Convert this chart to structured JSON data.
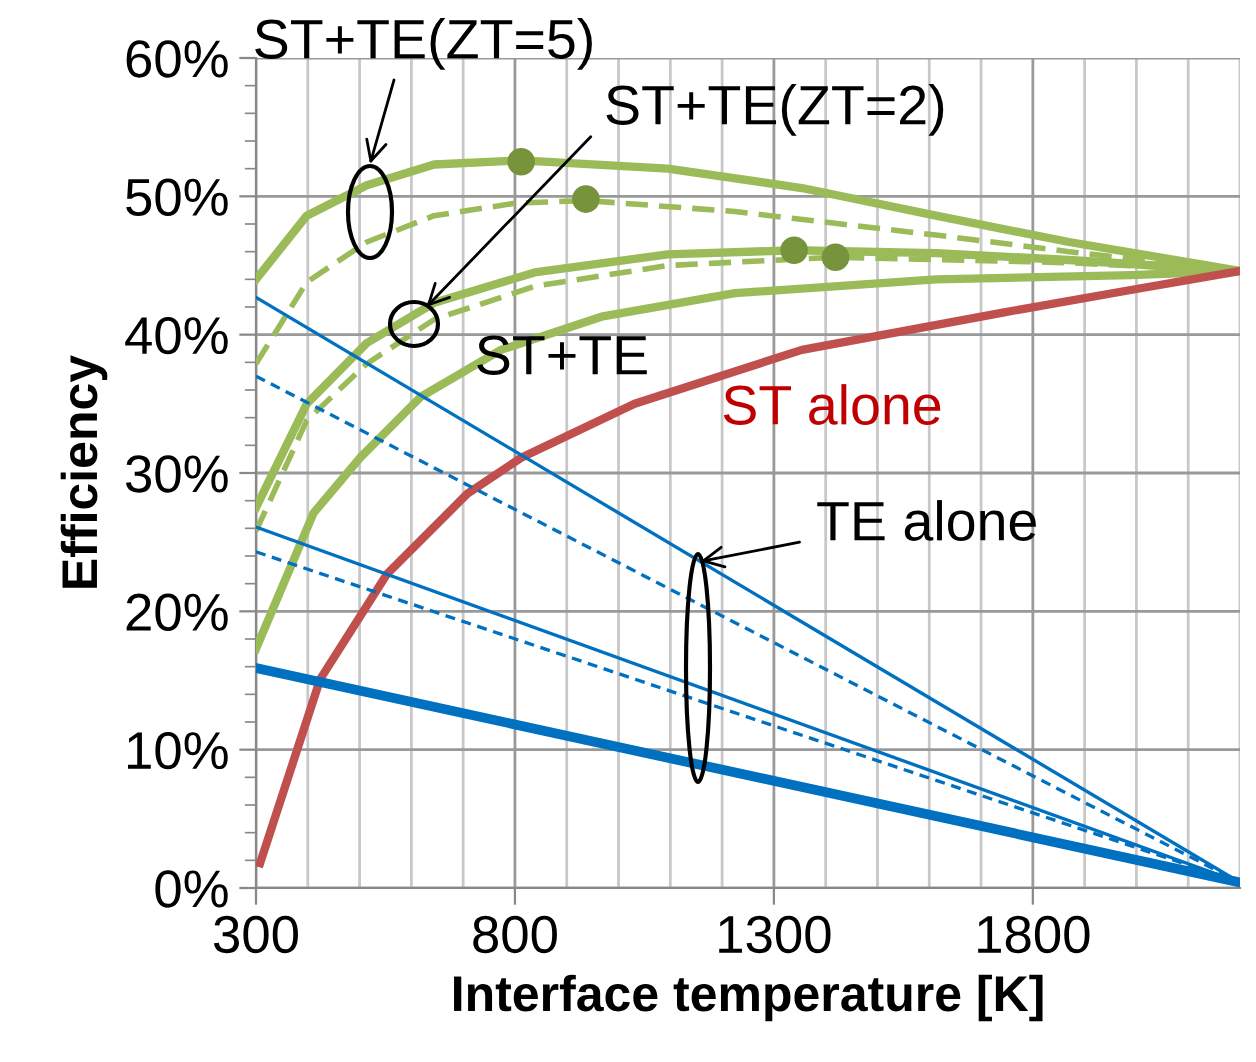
{
  "chart_data": {
    "type": "line",
    "xlabel": "Interface temperature [K]",
    "ylabel": "Efficiency",
    "xlim": [
      300,
      2200
    ],
    "ylim": [
      0,
      60
    ],
    "xticks": [
      300,
      {
        "value": 400,
        "label": null
      },
      {
        "value": 500,
        "label": null
      },
      {
        "value": 600,
        "label": null
      },
      {
        "value": 700,
        "label": null
      },
      800,
      {
        "value": 900,
        "label": null
      },
      {
        "value": 1000,
        "label": null
      },
      {
        "value": 1100,
        "label": null
      },
      {
        "value": 1200,
        "label": null
      },
      1300,
      {
        "value": 1400,
        "label": null
      },
      {
        "value": 1500,
        "label": null
      },
      {
        "value": 1600,
        "label": null
      },
      {
        "value": 1700,
        "label": null
      },
      1800,
      {
        "value": 1900,
        "label": null
      },
      {
        "value": 2000,
        "label": null
      },
      {
        "value": 2100,
        "label": null
      },
      {
        "value": 2200,
        "label": null
      }
    ],
    "yticks": [
      {
        "value": 0,
        "label": "0%"
      },
      {
        "value": 2,
        "label": null
      },
      {
        "value": 4,
        "label": null
      },
      {
        "value": 6,
        "label": null
      },
      {
        "value": 8,
        "label": null
      },
      {
        "value": 10,
        "label": "10%"
      },
      {
        "value": 12,
        "label": null
      },
      {
        "value": 14,
        "label": null
      },
      {
        "value": 16,
        "label": null
      },
      {
        "value": 18,
        "label": null
      },
      {
        "value": 20,
        "label": "20%"
      },
      {
        "value": 22,
        "label": null
      },
      {
        "value": 24,
        "label": null
      },
      {
        "value": 26,
        "label": null
      },
      {
        "value": 28,
        "label": null
      },
      {
        "value": 30,
        "label": "30%"
      },
      {
        "value": 32,
        "label": null
      },
      {
        "value": 34,
        "label": null
      },
      {
        "value": 36,
        "label": null
      },
      {
        "value": 38,
        "label": null
      },
      {
        "value": 40,
        "label": "40%"
      },
      {
        "value": 42,
        "label": null
      },
      {
        "value": 44,
        "label": null
      },
      {
        "value": 46,
        "label": null
      },
      {
        "value": 48,
        "label": null
      },
      {
        "value": 50,
        "label": "50%"
      },
      {
        "value": 52,
        "label": null
      },
      {
        "value": 54,
        "label": null
      },
      {
        "value": 56,
        "label": null
      },
      {
        "value": 58,
        "label": null
      },
      {
        "value": 60,
        "label": "60%"
      }
    ],
    "grid": true,
    "legend": false,
    "marker": "none",
    "series": [
      {
        "color": "#9bbb59",
        "line_style": "solid",
        "x": [
          300,
          398,
          514,
          644,
          812,
          1095,
          1354,
          1613,
          1870,
          2200
        ],
        "values": [
          44.0,
          48.6,
          50.8,
          52.3,
          52.6,
          52.0,
          50.6,
          48.6,
          46.7,
          44.6
        ]
      },
      {
        "color": "#9bbb59",
        "line_style": "dashed",
        "x": [
          300,
          398,
          514,
          644,
          800,
          937,
          1225,
          1613,
          1870,
          2200
        ],
        "values": [
          37.9,
          43.8,
          46.7,
          48.6,
          49.5,
          49.7,
          48.9,
          47.2,
          46.0,
          44.6
        ]
      },
      {
        "color": "#9bbb59",
        "line_style": "solid",
        "x": [
          300,
          398,
          514,
          644,
          838,
          1095,
          1339,
          1613,
          1870,
          2200
        ],
        "values": [
          27.5,
          35.0,
          39.4,
          42.3,
          44.5,
          45.8,
          46.1,
          45.9,
          45.4,
          44.6
        ]
      },
      {
        "color": "#9bbb59",
        "line_style": "dashed",
        "x": [
          300,
          398,
          514,
          644,
          838,
          1095,
          1419,
          1870,
          2200
        ],
        "values": [
          25.8,
          33.8,
          37.9,
          41.1,
          43.5,
          45.0,
          45.6,
          45.2,
          44.6
        ]
      },
      {
        "color": "#9bbb59",
        "line_style": "solid",
        "x": [
          300,
          411,
          501,
          618,
          773,
          967,
          1225,
          1613,
          1990,
          2200
        ],
        "values": [
          17.3,
          27.1,
          31.1,
          35.5,
          38.9,
          41.3,
          43.0,
          44.0,
          44.3,
          44.6
        ]
      },
      {
        "color": "#c0504d",
        "line_style": "solid",
        "x": [
          308,
          424,
          553,
          708,
          812,
          1031,
          1354,
          1742,
          2000,
          2200
        ],
        "values": [
          1.8,
          15.1,
          22.7,
          28.5,
          31.1,
          35.0,
          38.9,
          41.6,
          43.3,
          44.6
        ]
      },
      {
        "color": "#0070c0",
        "line_style": "solid",
        "x": [
          300,
          2200
        ],
        "values": [
          42.7,
          0.4
        ]
      },
      {
        "color": "#0070c0",
        "line_style": "dashed",
        "x": [
          300,
          2200
        ],
        "values": [
          37.0,
          0.4
        ]
      },
      {
        "color": "#0070c0",
        "line_style": "solid",
        "x": [
          300,
          2200
        ],
        "values": [
          26.1,
          0.4
        ]
      },
      {
        "color": "#0070c0",
        "line_style": "dashed",
        "x": [
          300,
          2200
        ],
        "values": [
          24.3,
          0.4
        ]
      },
      {
        "color": "#0070c0",
        "line_style": "solid",
        "x": [
          300,
          2200
        ],
        "values": [
          15.9,
          0.4
        ]
      },
      {
        "type": "scatter",
        "marker": "circle",
        "color": "#77933c",
        "x": [
          812,
          937,
          1339,
          1419
        ],
        "values": [
          52.5,
          49.8,
          46.1,
          45.6
        ]
      }
    ],
    "annotations": [
      "ST+TE(ZT=5)",
      {
        "text": "ST+TE(ZT=2)",
        "x": 629,
        "y": 42.0
      },
      "ST+TE",
      "ST alone",
      {
        "text": "TE alone",
        "x": 1158,
        "y": 23.6
      }
    ]
  }
}
